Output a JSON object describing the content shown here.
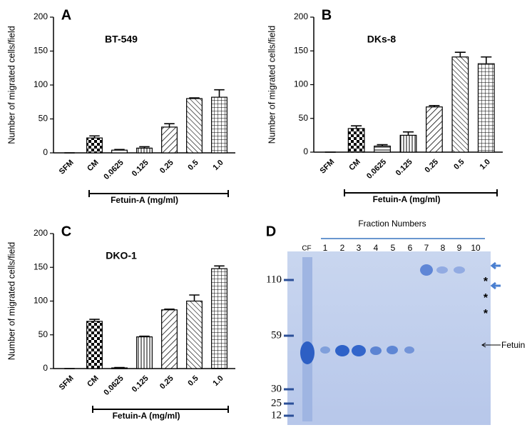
{
  "chart_data": [
    {
      "type": "bar",
      "panel": "A",
      "subtitle": "BT-549",
      "y_label": "Number of migrated cells/field",
      "bracket_label": "Fetuin-A (mg/ml)",
      "categories": [
        "SFM",
        "CM",
        "0.0625",
        "0.125",
        "0.25",
        "0.5",
        "1.0"
      ],
      "values": [
        0,
        22,
        4,
        7,
        38,
        80,
        82
      ],
      "errors": [
        0,
        3,
        1,
        2,
        5,
        1,
        11
      ],
      "ylim": [
        0,
        200
      ],
      "yticks": [
        0,
        50,
        100,
        150,
        200
      ]
    },
    {
      "type": "bar",
      "panel": "B",
      "subtitle": "DKs-8",
      "y_label": "Number of migrated cells/field",
      "bracket_label": "Fetuin-A (mg/ml)",
      "categories": [
        "SFM",
        "CM",
        "0.0625",
        "0.125",
        "0.25",
        "0.5",
        "1.0"
      ],
      "values": [
        0,
        35,
        9,
        25,
        67,
        141,
        131
      ],
      "errors": [
        0,
        4,
        2,
        5,
        2,
        7,
        10
      ],
      "ylim": [
        0,
        200
      ],
      "yticks": [
        0,
        50,
        100,
        150,
        200
      ]
    },
    {
      "type": "bar",
      "panel": "C",
      "subtitle": "DKO-1",
      "y_label": "Number of migrated cells/field",
      "bracket_label": "Fetuin-A (mg/ml)",
      "categories": [
        "SFM",
        "CM",
        "0.0625",
        "0.125",
        "0.25",
        "0.5",
        "1.0"
      ],
      "values": [
        0,
        70,
        1,
        47,
        87,
        100,
        148
      ],
      "errors": [
        0,
        3,
        0.5,
        1,
        1,
        9,
        4
      ],
      "ylim": [
        0,
        200
      ],
      "yticks": [
        0,
        50,
        100,
        150,
        200
      ]
    }
  ],
  "gel": {
    "panel": "D",
    "title": "Fraction Numbers",
    "lanes": [
      "CF",
      "1",
      "2",
      "3",
      "4",
      "5",
      "6",
      "7",
      "8",
      "9",
      "10"
    ],
    "markers": [
      "110",
      "59",
      "30",
      "25",
      "12"
    ],
    "band_label": "Fetuin",
    "asterisks": [
      "*",
      "*",
      "*"
    ]
  }
}
